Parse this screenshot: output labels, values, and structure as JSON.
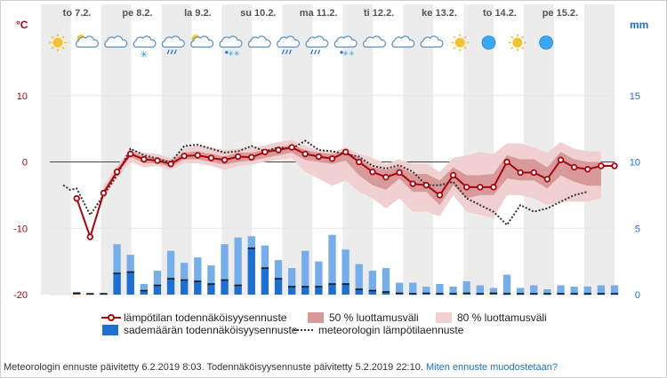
{
  "chart_data": {
    "type": "line",
    "left_axis_unit": "°C",
    "right_axis_unit": "mm",
    "left_ticks": [
      10,
      0,
      -10,
      -20
    ],
    "right_ticks": [
      15,
      10,
      5,
      0
    ],
    "left_ylim": [
      -20,
      20
    ],
    "right_ylim": [
      0,
      20
    ],
    "day_labels": [
      "to 7.2.",
      "pe 8.2.",
      "la 9.2.",
      "su 10.2.",
      "ma 11.2.",
      "ti 12.2.",
      "ke 13.2.",
      "to 14.2.",
      "pe 15.2."
    ],
    "x_range": [
      0,
      42
    ],
    "weather_icons": [
      "sun",
      "cloud-sun",
      "cloud",
      "cloud-snow",
      "cloud-rain",
      "cloud-sun",
      "cloud-sleet",
      "cloud",
      "cloud-rain",
      "cloud-rain",
      "cloud-sleet",
      "cloud",
      "cloud",
      "cloud",
      "sun",
      "moon",
      "sun",
      "moon"
    ],
    "temperature_forecast": {
      "x": [
        2,
        3,
        4,
        5,
        6,
        7,
        8,
        9,
        10,
        11,
        12,
        13,
        14,
        15,
        16,
        17,
        18,
        19,
        20,
        21,
        22,
        23,
        24,
        25,
        26,
        27,
        28,
        29,
        30,
        31,
        32,
        33,
        34,
        35,
        36,
        37,
        38,
        39,
        40,
        41,
        42
      ],
      "y": [
        -5.5,
        -11.3,
        -4.7,
        -1.5,
        1.2,
        0.4,
        0.2,
        -0.3,
        0.9,
        1.0,
        0.6,
        0.3,
        0.8,
        0.7,
        1.5,
        1.8,
        2.2,
        1.2,
        0.8,
        0.5,
        1.5,
        0,
        -1.5,
        -2.3,
        -1.6,
        -3.3,
        -3.5,
        -5.0,
        -2.0,
        -3.8,
        -3.8,
        -3.8,
        0,
        -1.6,
        -1.6,
        -2.6,
        0.3,
        -0.8,
        -1.1,
        -0.6,
        -0.6
      ]
    },
    "band_80": {
      "x": [
        4,
        5,
        6,
        7,
        8,
        9,
        10,
        11,
        12,
        13,
        14,
        15,
        16,
        17,
        18,
        19,
        20,
        21,
        22,
        23,
        24,
        25,
        26,
        27,
        28,
        29,
        30,
        31,
        32,
        33,
        34,
        35,
        36,
        37,
        38,
        39,
        40,
        41
      ],
      "high": [
        -3.5,
        -0.5,
        2.0,
        1.4,
        1.2,
        0.6,
        2.0,
        2.5,
        2.2,
        1.8,
        2.0,
        2.2,
        2.5,
        3.0,
        3.3,
        2.4,
        1.8,
        1.5,
        2.2,
        1.2,
        0.6,
        -0.3,
        0.4,
        -0.3,
        -0.3,
        -1.5,
        0.6,
        1.0,
        1.5,
        1.2,
        2.8,
        2.8,
        2.2,
        1.4,
        3.0,
        2.0,
        1.6,
        1.6
      ],
      "low": [
        -5.5,
        -2.5,
        0.0,
        -0.8,
        -0.6,
        -1.2,
        -0.2,
        -0.2,
        -0.6,
        -1.2,
        -0.6,
        -0.4,
        0.0,
        0.3,
        0.6,
        -1.5,
        -2.5,
        -3.6,
        -2.8,
        -4.5,
        -5.5,
        -7.0,
        -5.5,
        -7.5,
        -7.5,
        -8.2,
        -5.0,
        -7.5,
        -8.0,
        -8.5,
        -5.0,
        -5.0,
        -5.5,
        -6.5,
        -6.0,
        -6.0,
        -6.0,
        -5.5
      ]
    },
    "band_50": {
      "x": [
        4,
        5,
        6,
        7,
        8,
        9,
        10,
        11,
        12,
        13,
        14,
        15,
        16,
        17,
        18,
        19,
        20,
        21,
        22,
        23,
        24,
        25,
        26,
        27,
        28,
        29,
        30,
        31,
        32,
        33,
        34,
        35,
        36,
        37,
        38,
        39,
        40,
        41
      ],
      "high": [
        -4.2,
        -1.0,
        1.6,
        0.8,
        0.6,
        0.2,
        1.4,
        1.6,
        1.2,
        0.8,
        1.4,
        1.4,
        1.8,
        2.2,
        2.6,
        1.8,
        1.4,
        1.2,
        1.6,
        0.6,
        -0.8,
        -1.2,
        -0.7,
        -1.8,
        -1.8,
        -2.8,
        -0.8,
        -2.0,
        -2.0,
        -1.8,
        1.0,
        0.4,
        0.4,
        -0.8,
        1.5,
        0.4,
        0.0,
        0.0
      ],
      "low": [
        -5.0,
        -1.8,
        0.8,
        -0.2,
        -0.2,
        -0.8,
        0.4,
        0.4,
        0.0,
        -0.4,
        0.0,
        0.2,
        0.6,
        1.0,
        1.4,
        0.3,
        0.0,
        -0.3,
        0.2,
        -2.0,
        -3.5,
        -4.2,
        -2.5,
        -4.5,
        -4.5,
        -6.5,
        -3.5,
        -5.5,
        -5.0,
        -5.0,
        -2.5,
        -2.8,
        -2.8,
        -4.0,
        -2.0,
        -3.0,
        -3.6,
        -3.6
      ]
    },
    "meteorologist_forecast": {
      "x": [
        1,
        1.5,
        2,
        3,
        4,
        5,
        6,
        7,
        8,
        9,
        10,
        11,
        12,
        13,
        14,
        15,
        16,
        17,
        18,
        19,
        20,
        21,
        22,
        23,
        24,
        25,
        26,
        27,
        28,
        29,
        30,
        31,
        32,
        33,
        34,
        35,
        36,
        37,
        38,
        39,
        40
      ],
      "y": [
        -3.5,
        -4.2,
        -4.0,
        -8.0,
        -5.0,
        -2.0,
        2.0,
        1.0,
        0.5,
        -0.1,
        2.4,
        2.6,
        2.0,
        1.4,
        1.6,
        2.4,
        1.6,
        2.2,
        2.0,
        3.2,
        1.8,
        1.6,
        1.2,
        0.8,
        -0.6,
        -1.0,
        -0.5,
        -1.5,
        -3.5,
        -3.5,
        -3.0,
        -5.5,
        -6.5,
        -7.5,
        -9.5,
        -6.5,
        -7.5,
        -7.0,
        -6.0,
        -5.0,
        -4.5
      ]
    },
    "precipitation": {
      "x": [
        2,
        3,
        4,
        5,
        6,
        7,
        8,
        9,
        10,
        11,
        12,
        13,
        14,
        15,
        16,
        17,
        18,
        19,
        20,
        21,
        22,
        23,
        24,
        25,
        26,
        27,
        28,
        29,
        30,
        31,
        32,
        33,
        34,
        35,
        36,
        37,
        38,
        39,
        40,
        41,
        42
      ],
      "low": [
        0,
        0,
        0,
        0.6,
        0.5,
        0,
        0.1,
        0.5,
        0.4,
        0.5,
        0.3,
        0.2,
        0.1,
        0.8,
        0.2,
        0.4,
        0.3,
        0.3,
        0.2,
        0.3,
        0.1,
        0.1,
        0.1,
        0.1,
        0,
        0,
        0,
        0,
        0,
        0,
        0,
        0,
        0,
        0,
        0,
        0,
        0,
        0,
        0,
        0,
        0
      ],
      "median": [
        0.1,
        0.05,
        0.05,
        1.6,
        1.7,
        0.3,
        0.7,
        1.2,
        1.1,
        1.0,
        0.8,
        1.1,
        0.7,
        3.5,
        2.0,
        1.2,
        0.6,
        0.6,
        0.6,
        0.8,
        0.8,
        0.4,
        0.3,
        0.2,
        0.1,
        0.05,
        0.1,
        0.05,
        0.05,
        0.1,
        0.05,
        0.1,
        0.05,
        0.05,
        0.05,
        0.05,
        0.05,
        0.05,
        0.05,
        0.05,
        0.05
      ],
      "high": [
        0.2,
        0.1,
        0.1,
        3.8,
        3.0,
        0.8,
        1.8,
        3.3,
        2.4,
        2.8,
        2.2,
        3.8,
        4.3,
        4.4,
        3.7,
        2.6,
        2.0,
        3.3,
        2.5,
        4.5,
        3.4,
        2.3,
        1.8,
        2.0,
        0.9,
        0.9,
        0.6,
        0.8,
        0.6,
        1.0,
        0.7,
        0.5,
        1.5,
        0.5,
        0.7,
        0.4,
        0.7,
        0.6,
        0.6,
        0.7,
        0.7
      ]
    },
    "night_shade_fraction": 0.5
  },
  "legend": {
    "temperature": "lämpötilan todennäköisyysennuste",
    "band50": "50 % luottamusväli",
    "band80": "80 % luottamusväli",
    "precip": "sademäärän todennäköisyysennuste",
    "meteorologist": "meteorologin lämpötilaennuste"
  },
  "footer": {
    "text": "Meteorologin ennuste päivitetty 6.2.2019 8:03. Todennäköisyysennuste päivitetty 5.2.2019 22:10.",
    "link": "Miten ennuste muodostetaan?"
  },
  "colors": {
    "temperature_line": "#a8050d",
    "band50": "#d79999",
    "band80": "#f0d0d0",
    "precip_dark": "#1f6fd1",
    "precip_light": "#76aeea",
    "night_shade": "#ececec",
    "left_axis": "#a8050d",
    "right_axis": "#1f6fd1",
    "sun": "#f3c233",
    "moon": "#3aa7f0"
  }
}
